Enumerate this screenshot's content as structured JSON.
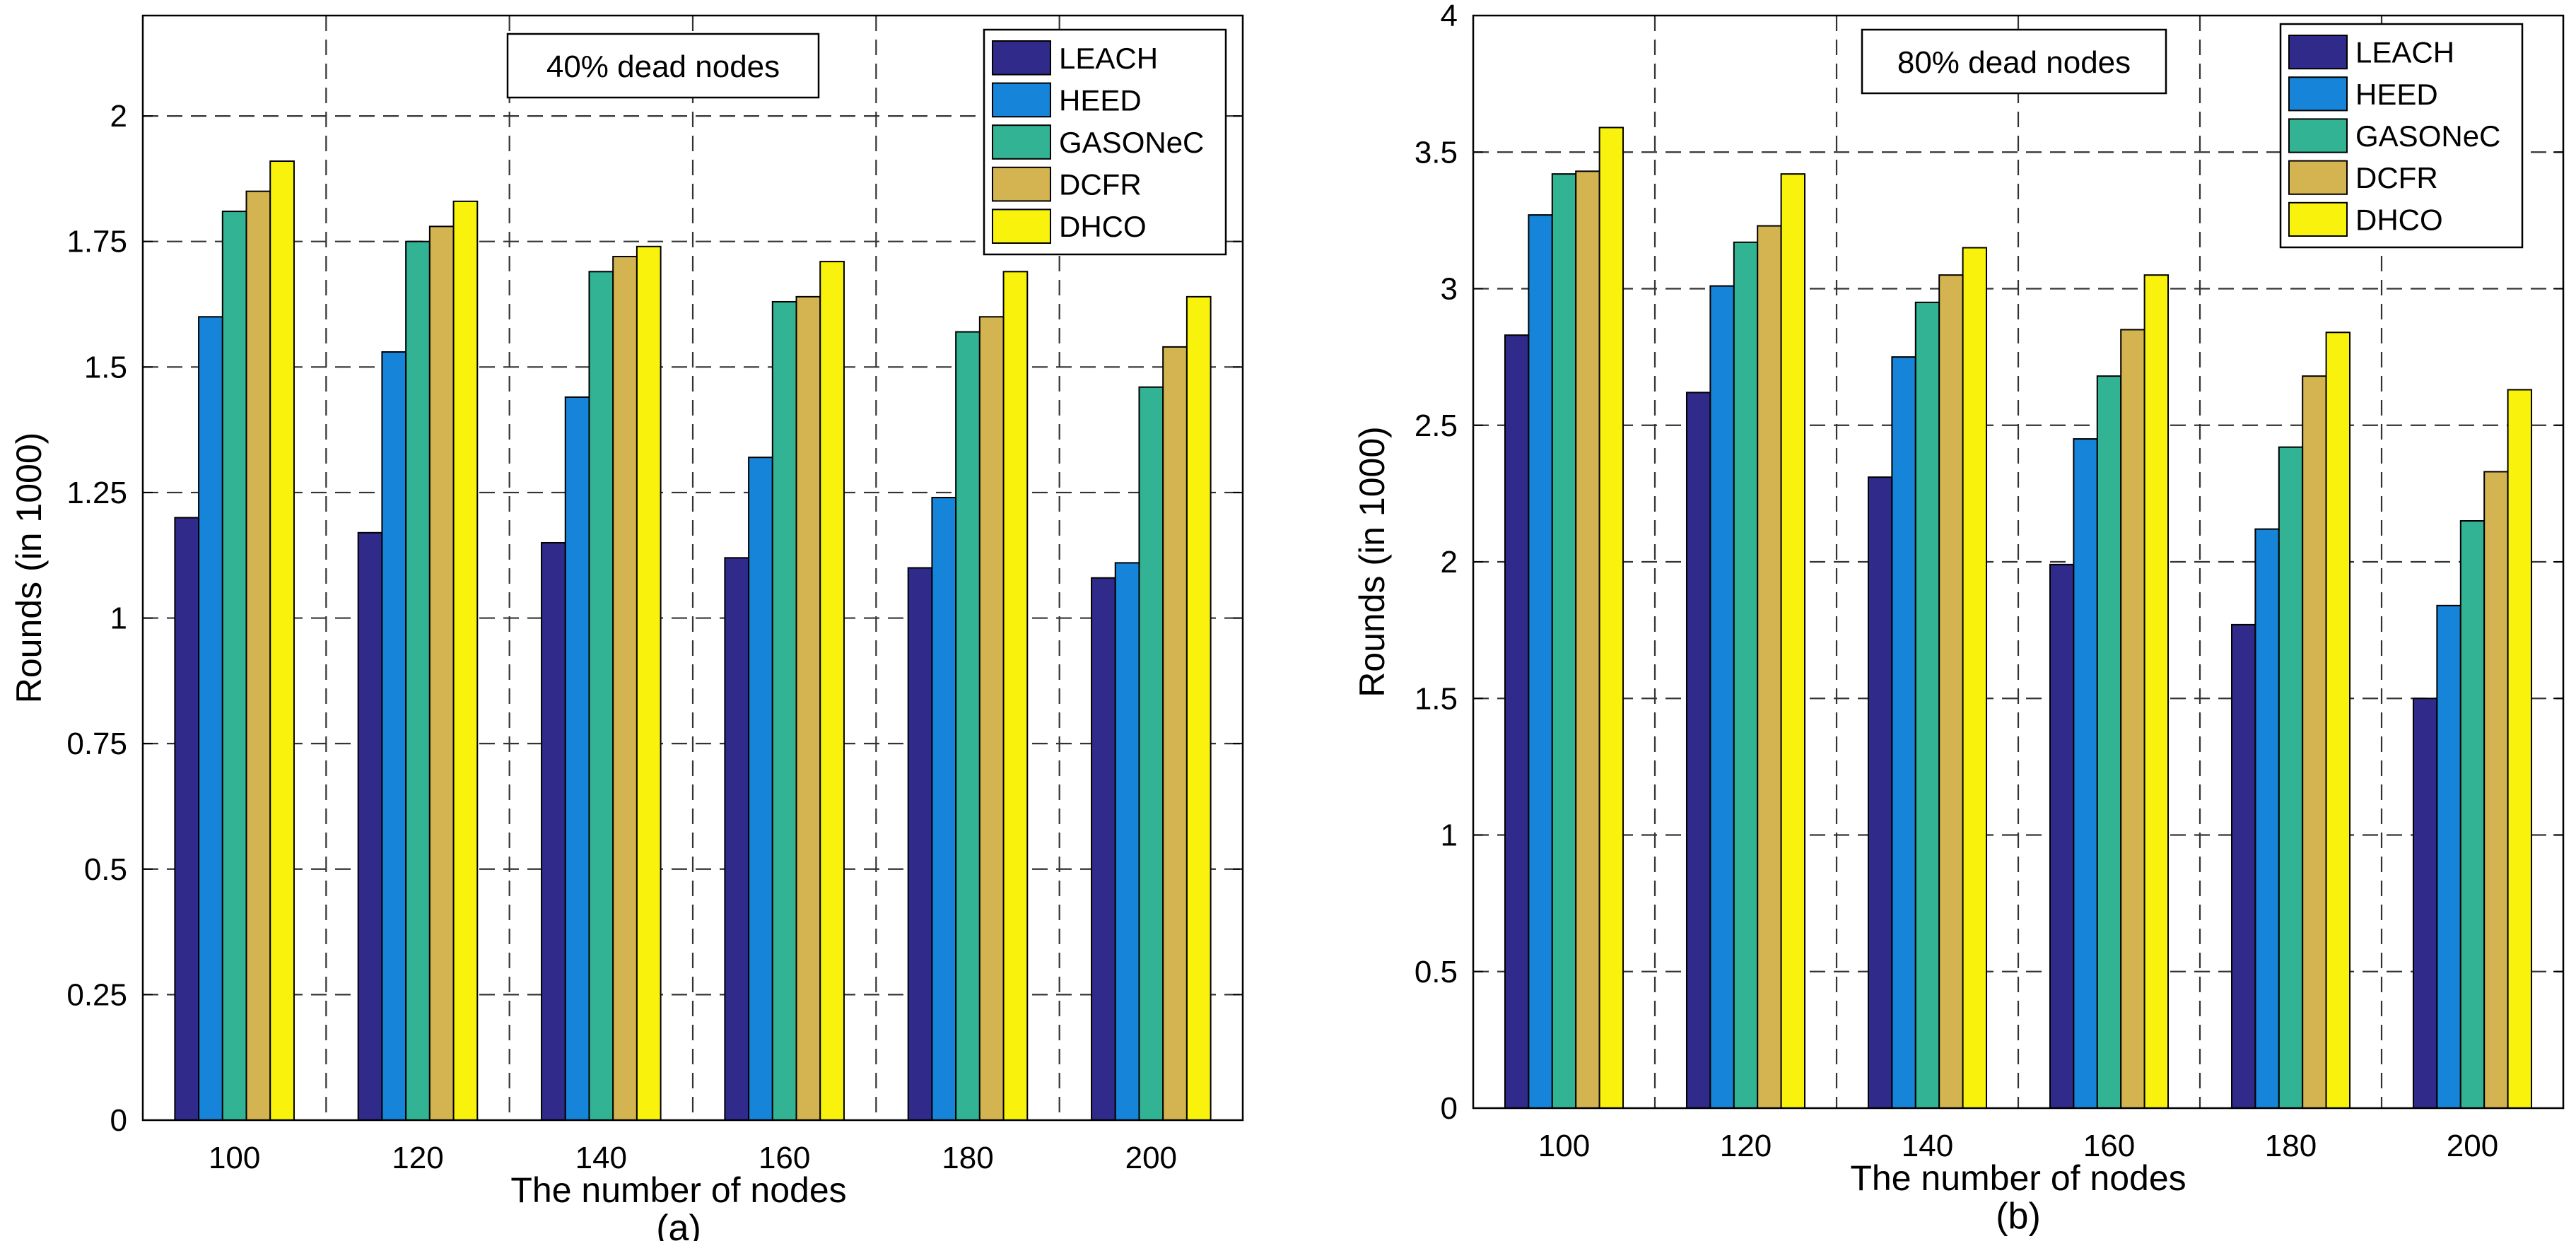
{
  "chart_data": [
    {
      "type": "bar",
      "caption": "(a)",
      "annotation": "40% dead nodes",
      "xlabel": "The number of nodes",
      "ylabel": "Rounds  (in 1000)",
      "categories": [
        "100",
        "120",
        "140",
        "160",
        "180",
        "200"
      ],
      "ylim": [
        0,
        2.2
      ],
      "yticks": [
        0,
        0.25,
        0.5,
        0.75,
        1,
        1.25,
        1.5,
        1.75,
        2
      ],
      "ytick_labels": [
        "0",
        "0.25",
        "0.5",
        "0.75",
        "1",
        "1.25",
        "1.5",
        "1.75",
        "2"
      ],
      "grid": true,
      "legend_position": "top-right",
      "series": [
        {
          "name": "LEACH",
          "color": "#302a8a",
          "values": [
            1.2,
            1.17,
            1.15,
            1.12,
            1.1,
            1.08
          ]
        },
        {
          "name": "HEED",
          "color": "#1684d8",
          "values": [
            1.6,
            1.53,
            1.44,
            1.32,
            1.24,
            1.11
          ]
        },
        {
          "name": "GASONeC",
          "color": "#32b394",
          "values": [
            1.81,
            1.75,
            1.69,
            1.63,
            1.57,
            1.46
          ]
        },
        {
          "name": "DCFR",
          "color": "#d4b450",
          "values": [
            1.85,
            1.78,
            1.72,
            1.64,
            1.6,
            1.54
          ]
        },
        {
          "name": "DHCO",
          "color": "#f8f20c",
          "values": [
            1.91,
            1.83,
            1.74,
            1.71,
            1.69,
            1.64
          ]
        }
      ]
    },
    {
      "type": "bar",
      "caption": "(b)",
      "annotation": "80% dead nodes",
      "xlabel": "The number of nodes",
      "ylabel": "Rounds  (in 1000)",
      "categories": [
        "100",
        "120",
        "140",
        "160",
        "180",
        "200"
      ],
      "ylim": [
        0,
        4
      ],
      "yticks": [
        0,
        0.5,
        1,
        1.5,
        2,
        2.5,
        3,
        3.5,
        4
      ],
      "ytick_labels": [
        "0",
        "0.5",
        "1",
        "1.5",
        "2",
        "2.5",
        "3",
        "3.5",
        "4"
      ],
      "grid": true,
      "legend_position": "top-right",
      "series": [
        {
          "name": "LEACH",
          "color": "#302a8a",
          "values": [
            2.83,
            2.62,
            2.31,
            1.99,
            1.77,
            1.5
          ]
        },
        {
          "name": "HEED",
          "color": "#1684d8",
          "values": [
            3.27,
            3.01,
            2.75,
            2.45,
            2.12,
            1.84
          ]
        },
        {
          "name": "GASONeC",
          "color": "#32b394",
          "values": [
            3.42,
            3.17,
            2.95,
            2.68,
            2.42,
            2.15
          ]
        },
        {
          "name": "DCFR",
          "color": "#d4b450",
          "values": [
            3.43,
            3.23,
            3.05,
            2.85,
            2.68,
            2.33
          ]
        },
        {
          "name": "DHCO",
          "color": "#f8f20c",
          "values": [
            3.59,
            3.42,
            3.15,
            3.05,
            2.84,
            2.63
          ]
        }
      ]
    }
  ]
}
